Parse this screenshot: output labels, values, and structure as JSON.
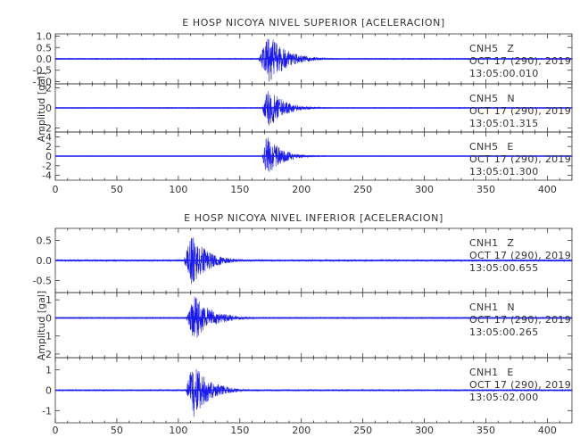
{
  "chart_data": [
    {
      "type": "line",
      "title": "E HOSP NICOYA NIVEL SUPERIOR [ACELERACION]",
      "ylabel": "Amplitud [gal]",
      "xlim": [
        0,
        420
      ],
      "xticks": [
        "0",
        "50",
        "100",
        "150",
        "200",
        "250",
        "300",
        "350",
        "400"
      ],
      "series": [
        {
          "name": "CNH5 Z",
          "station": "CNH5",
          "component": "Z",
          "date": "OCT 17 (290), 2019",
          "time": "13:05:00.010",
          "ylim": [
            -1.1,
            1.1
          ],
          "yticks": [
            "1.0",
            "0.5",
            "0.0",
            "-0.5",
            "-1.0"
          ],
          "noise": 0.02,
          "onset": 165,
          "peak": 174,
          "peak_amp": 1.1,
          "decay": 14
        },
        {
          "name": "CNH5 N",
          "station": "CNH5",
          "component": "N",
          "date": "OCT 17 (290), 2019",
          "time": "13:05:01.315",
          "ylim": [
            -2.4,
            2.4
          ],
          "yticks": [
            "2",
            "0",
            "-2"
          ],
          "noise": 0.03,
          "onset": 168,
          "peak": 173,
          "peak_amp": 2.2,
          "decay": 12
        },
        {
          "name": "CNH5 E",
          "station": "CNH5",
          "component": "E",
          "date": "OCT 17 (290), 2019",
          "time": "13:05:01.300",
          "ylim": [
            -5,
            5
          ],
          "yticks": [
            "4",
            "2",
            "0",
            "-2",
            "-4"
          ],
          "noise": 0.05,
          "onset": 168,
          "peak": 172,
          "peak_amp": 4.6,
          "decay": 11
        }
      ]
    },
    {
      "type": "line",
      "title": "E HOSP NICOYA NIVEL INFERIOR [ACELERACION]",
      "ylabel": "Amplitud [gal]",
      "xlim": [
        0,
        420
      ],
      "xticks": [
        "0",
        "50",
        "100",
        "150",
        "200",
        "250",
        "300",
        "350",
        "400"
      ],
      "series": [
        {
          "name": "CNH1 Z",
          "station": "CNH1",
          "component": "Z",
          "date": "OCT 17 (290), 2019",
          "time": "13:05:00.655",
          "ylim": [
            -0.8,
            0.8
          ],
          "yticks": [
            "0.5",
            "0.0",
            "-0.5"
          ],
          "noise": 0.02,
          "onset": 104,
          "peak": 111,
          "peak_amp": 0.65,
          "decay": 13
        },
        {
          "name": "CNH1 N",
          "station": "CNH1",
          "component": "N",
          "date": "OCT 17 (290), 2019",
          "time": "13:05:00.265",
          "ylim": [
            -2.2,
            1.4
          ],
          "yticks": [
            "1",
            "0",
            "-1",
            "-2"
          ],
          "noise": 0.03,
          "onset": 106,
          "peak": 113,
          "peak_amp": 1.3,
          "decay": 14
        },
        {
          "name": "CNH1 E",
          "station": "CNH1",
          "component": "E",
          "date": "OCT 17 (290), 2019",
          "time": "13:05:02.000",
          "ylim": [
            -1.6,
            1.6
          ],
          "yticks": [
            "1",
            "0",
            "-1"
          ],
          "noise": 0.03,
          "onset": 106,
          "peak": 112,
          "peak_amp": 1.4,
          "decay": 13
        }
      ]
    }
  ]
}
